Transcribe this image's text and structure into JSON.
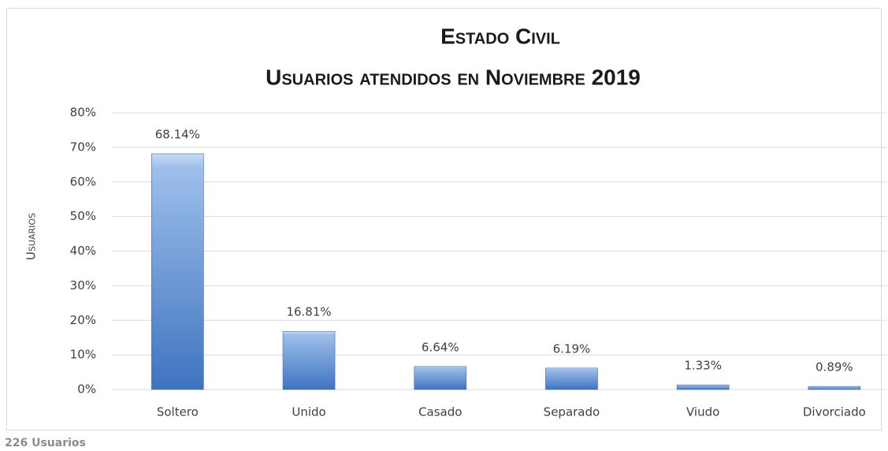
{
  "chart_data": {
    "type": "bar",
    "title": "Estado Civil",
    "subtitle": "Usuarios atendidos en Noviembre 2019",
    "y_label": "Usuarios",
    "footnote": "226 Usuarios",
    "categories": [
      "Soltero",
      "Unido",
      "Casado",
      "Separado",
      "Viudo",
      "Divorciado"
    ],
    "values": [
      68.14,
      16.81,
      6.64,
      6.19,
      1.33,
      0.89
    ],
    "value_labels": [
      "68.14%",
      "16.81%",
      "6.64%",
      "6.19%",
      "1.33%",
      "0.89%"
    ],
    "color": "#4a7ec8",
    "ylim": [
      0,
      80
    ],
    "yticks": [
      {
        "value": 0,
        "label": "0%"
      },
      {
        "value": 10,
        "label": "10%"
      },
      {
        "value": 20,
        "label": "20%"
      },
      {
        "value": 30,
        "label": "30%"
      },
      {
        "value": 40,
        "label": "40%"
      },
      {
        "value": 50,
        "label": "50%"
      },
      {
        "value": 60,
        "label": "60%"
      },
      {
        "value": 70,
        "label": "70%"
      },
      {
        "value": 80,
        "label": "80%"
      }
    ],
    "grid": true
  }
}
